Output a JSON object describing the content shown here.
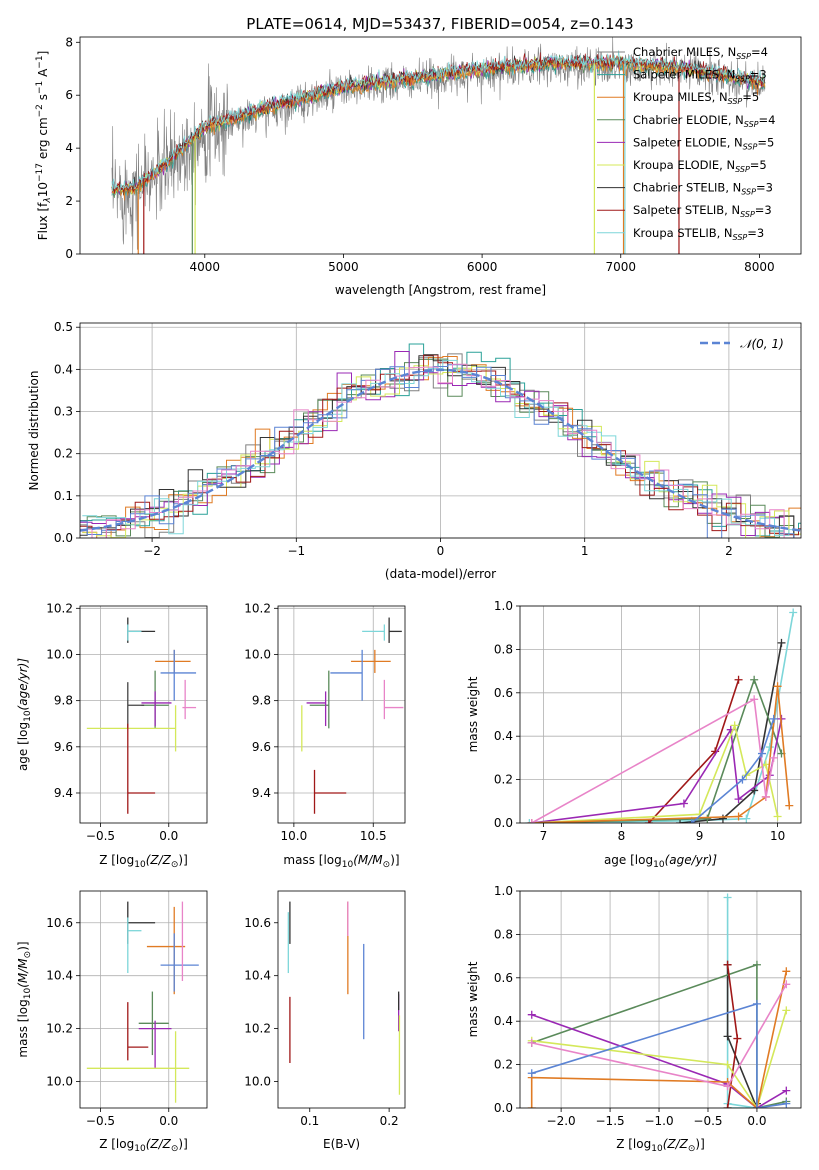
{
  "figure": {
    "title": "PLATE=0614, MJD=53437, FIBERID=0054, z=0.143"
  },
  "series_colors": {
    "Chabrier MILES": "#808080",
    "Salpeter MILES": "#2aa198",
    "Kroupa MILES": "#e07b24",
    "Chabrier ELODIE": "#5a8a5a",
    "Salpeter ELODIE": "#9a28b4",
    "Kroupa ELODIE": "#d4e85a",
    "Chabrier STELIB": "#333333",
    "Salpeter STELIB": "#a01818",
    "Kroupa STELIB": "#7dd6d9",
    "extra_blue": "#5b84d4",
    "extra_pink": "#e884c8"
  },
  "chart_data": [
    {
      "id": "spectrum",
      "type": "line",
      "title": "PLATE=0614, MJD=53437, FIBERID=0054, z=0.143",
      "xlabel": "wavelength [Angstrom, rest frame]",
      "ylabel": "Flux [f",
      "ylabel_sub": "λ",
      "ylabel_rest": "10",
      "ylabel_sup1": "−17",
      "ylabel_mid": " erg cm",
      "ylabel_sup2": "−2",
      "ylabel_mid2": " s",
      "ylabel_sup3": "−1",
      "ylabel_end": " A",
      "ylabel_sup4": "−1",
      "ylabel_close": "]",
      "xlim": [
        3100,
        8300
      ],
      "ylim": [
        0,
        8.2
      ],
      "xticks": [
        4000,
        5000,
        6000,
        7000,
        8000
      ],
      "yticks": [
        0,
        2,
        4,
        6,
        8
      ],
      "continuum": {
        "x": [
          3330,
          3500,
          3700,
          3900,
          4000,
          4200,
          4500,
          4800,
          5000,
          5300,
          5600,
          6000,
          6500,
          7000,
          7500,
          7800,
          8000,
          8050
        ],
        "y": [
          2.4,
          2.5,
          3.3,
          4.3,
          4.8,
          5.1,
          5.6,
          6.0,
          6.3,
          6.5,
          6.7,
          7.0,
          7.2,
          7.2,
          7.0,
          6.7,
          6.5,
          6.4
        ]
      },
      "legend": [
        {
          "label": "Chabrier MILES, N",
          "sub": "SSP",
          "value": "=4",
          "color": "#808080"
        },
        {
          "label": "Salpeter MILES, N",
          "sub": "SSP",
          "value": "=3",
          "color": "#2aa198"
        },
        {
          "label": "Kroupa MILES, N",
          "sub": "SSP",
          "value": "=5",
          "color": "#e07b24"
        },
        {
          "label": "Chabrier ELODIE, N",
          "sub": "SSP",
          "value": "=4",
          "color": "#5a8a5a"
        },
        {
          "label": "Salpeter ELODIE, N",
          "sub": "SSP",
          "value": "=5",
          "color": "#9a28b4"
        },
        {
          "label": "Kroupa ELODIE, N",
          "sub": "SSP",
          "value": "=5",
          "color": "#d4e85a"
        },
        {
          "label": "Chabrier STELIB, N",
          "sub": "SSP",
          "value": "=3",
          "color": "#333333"
        },
        {
          "label": "Salpeter STELIB, N",
          "sub": "SSP",
          "value": "=3",
          "color": "#a01818"
        },
        {
          "label": "Kroupa STELIB, N",
          "sub": "SSP",
          "value": "=3",
          "color": "#7dd6d9"
        }
      ],
      "legend_placement": "right"
    },
    {
      "id": "residuals",
      "type": "bar",
      "xlabel": "(data-model)/error",
      "ylabel": "Normed distribution",
      "xlim": [
        -2.5,
        2.5
      ],
      "ylim": [
        0,
        0.51
      ],
      "xticks": [
        -2,
        -1,
        0,
        1,
        2
      ],
      "yticks": [
        0.0,
        0.1,
        0.2,
        0.3,
        0.4,
        0.5
      ],
      "bin_width": 0.1,
      "gaussian_label": "𝒩(0, 1)",
      "gaussian_color": "#5b84d4",
      "legend_placement": "top-right",
      "grid": true
    },
    {
      "id": "age_vs_Z",
      "type": "scatter",
      "xlabel": "Z [log",
      "xlabel_sub": "10",
      "xlabel_rest": "(Z/Z",
      "xlabel_sub2": "⊙",
      "xlabel_end": ")]",
      "ylabel": "age  [log",
      "ylabel_sub": "10",
      "ylabel_rest": "(age/yr)]",
      "xlim": [
        -0.65,
        0.28
      ],
      "ylim": [
        9.27,
        10.21
      ],
      "xticks": [
        -0.5,
        0.0
      ],
      "yticks": [
        9.4,
        9.6,
        9.8,
        10.0,
        10.2
      ],
      "points": [
        {
          "x": -0.3,
          "y": 10.1,
          "xerr": [
            0.0,
            0.2
          ],
          "yerr": [
            0.05,
            0.06
          ],
          "color": "#333333"
        },
        {
          "x": -0.3,
          "y": 10.1,
          "xerr": [
            0.0,
            0.1
          ],
          "yerr": [
            0.04,
            0.03
          ],
          "color": "#7dd6d9"
        },
        {
          "x": 0.04,
          "y": 9.97,
          "xerr": [
            0.14,
            0.12
          ],
          "yerr": [
            0.05,
            0.05
          ],
          "color": "#e07b24"
        },
        {
          "x": 0.04,
          "y": 9.92,
          "xerr": [
            0.1,
            0.16
          ],
          "yerr": [
            0.12,
            0.1
          ],
          "color": "#5b84d4"
        },
        {
          "x": -0.1,
          "y": 9.78,
          "xerr": [
            0.1,
            0.1
          ],
          "yerr": [
            0.1,
            0.15
          ],
          "color": "#5a8a5a"
        },
        {
          "x": -0.3,
          "y": 9.78,
          "xerr": [
            0.0,
            0.12
          ],
          "yerr": [
            0.1,
            0.1
          ],
          "color": "#444444"
        },
        {
          "x": -0.1,
          "y": 9.79,
          "xerr": [
            0.1,
            0.12
          ],
          "yerr": [
            0.1,
            0.05
          ],
          "color": "#9a28b4"
        },
        {
          "x": 0.12,
          "y": 9.77,
          "xerr": [
            0.02,
            0.08
          ],
          "yerr": [
            0.05,
            0.12
          ],
          "color": "#e884c8"
        },
        {
          "x": 0.05,
          "y": 9.68,
          "xerr": [
            0.65,
            0.0
          ],
          "yerr": [
            0.1,
            0.1
          ],
          "color": "#d4e85a"
        },
        {
          "x": -0.3,
          "y": 9.4,
          "xerr": [
            0.0,
            0.2
          ],
          "yerr": [
            0.09,
            0.3
          ],
          "color": "#a01818"
        }
      ]
    },
    {
      "id": "age_vs_mass",
      "type": "scatter",
      "xlabel": "mass [log",
      "xlabel_sub": "10",
      "xlabel_rest": "(M/M",
      "xlabel_sub2": "⊙",
      "xlabel_end": ")]",
      "xlim": [
        9.9,
        10.7
      ],
      "ylim": [
        9.27,
        10.21
      ],
      "xticks": [
        10.0,
        10.5
      ],
      "yticks": [
        9.4,
        9.6,
        9.8,
        10.0,
        10.2
      ],
      "points": [
        {
          "x": 10.6,
          "y": 10.1,
          "xerr": [
            0.0,
            0.08
          ],
          "yerr": [
            0.05,
            0.06
          ],
          "color": "#333333"
        },
        {
          "x": 10.57,
          "y": 10.1,
          "xerr": [
            0.14,
            0.0
          ],
          "yerr": [
            0.04,
            0.03
          ],
          "color": "#7dd6d9"
        },
        {
          "x": 10.51,
          "y": 9.97,
          "xerr": [
            0.15,
            0.1
          ],
          "yerr": [
            0.05,
            0.05
          ],
          "color": "#e07b24"
        },
        {
          "x": 10.43,
          "y": 9.92,
          "xerr": [
            0.2,
            0.0
          ],
          "yerr": [
            0.12,
            0.1
          ],
          "color": "#5b84d4"
        },
        {
          "x": 10.22,
          "y": 9.78,
          "xerr": [
            0.12,
            0.0
          ],
          "yerr": [
            0.1,
            0.15
          ],
          "color": "#5a8a5a"
        },
        {
          "x": 10.2,
          "y": 9.79,
          "xerr": [
            0.12,
            0.0
          ],
          "yerr": [
            0.1,
            0.05
          ],
          "color": "#9a28b4"
        },
        {
          "x": 10.57,
          "y": 9.77,
          "xerr": [
            0.0,
            0.12
          ],
          "yerr": [
            0.05,
            0.12
          ],
          "color": "#e884c8"
        },
        {
          "x": 10.05,
          "y": 9.68,
          "xerr": [
            0.0,
            0.0
          ],
          "yerr": [
            0.1,
            0.1
          ],
          "color": "#d4e85a"
        },
        {
          "x": 10.13,
          "y": 9.4,
          "xerr": [
            0.0,
            0.2
          ],
          "yerr": [
            0.09,
            0.1
          ],
          "color": "#a01818"
        }
      ]
    },
    {
      "id": "weight_vs_age",
      "type": "line",
      "xlabel": "age  [log",
      "xlabel_sub": "10",
      "xlabel_rest": "(age/yr)]",
      "ylabel": "mass weight",
      "xlim": [
        6.7,
        10.3
      ],
      "ylim": [
        0,
        1.0
      ],
      "xticks": [
        7,
        8,
        9,
        10
      ],
      "yticks": [
        0.0,
        0.2,
        0.4,
        0.6,
        0.8,
        1.0
      ],
      "series": [
        {
          "color": "#7dd6d9",
          "x": [
            6.82,
            8.9,
            9.6,
            9.9,
            10.2
          ],
          "y": [
            0.0,
            0.01,
            0.02,
            0.35,
            0.97
          ]
        },
        {
          "color": "#333333",
          "x": [
            8.75,
            9.3,
            9.7,
            10.05
          ],
          "y": [
            0.0,
            0.02,
            0.15,
            0.83
          ]
        },
        {
          "color": "#5a8a5a",
          "x": [
            6.85,
            9.1,
            9.7,
            10.05
          ],
          "y": [
            0.0,
            0.02,
            0.66,
            0.32
          ]
        },
        {
          "color": "#a01818",
          "x": [
            8.35,
            9.2,
            9.5
          ],
          "y": [
            0.0,
            0.33,
            0.66
          ]
        },
        {
          "color": "#9a28b4",
          "x": [
            6.85,
            8.8,
            9.4,
            9.5,
            9.9,
            10.05
          ],
          "y": [
            0.0,
            0.09,
            0.43,
            0.11,
            0.22,
            0.48
          ]
        },
        {
          "color": "#d4e85a",
          "x": [
            6.85,
            9.0,
            9.45,
            9.6,
            9.85,
            10.0
          ],
          "y": [
            0.0,
            0.04,
            0.45,
            0.22,
            0.27,
            0.03
          ]
        },
        {
          "color": "#e07b24",
          "x": [
            6.85,
            9.5,
            9.85,
            10.0,
            10.15
          ],
          "y": [
            0.0,
            0.03,
            0.12,
            0.63,
            0.08
          ]
        },
        {
          "color": "#e884c8",
          "x": [
            6.85,
            9.7,
            9.85,
            9.95
          ],
          "y": [
            0.0,
            0.57,
            0.12,
            0.3
          ]
        },
        {
          "color": "#5b84d4",
          "x": [
            8.9,
            9.55,
            9.8,
            9.95
          ],
          "y": [
            0.0,
            0.2,
            0.32,
            0.48
          ]
        }
      ]
    },
    {
      "id": "mass_vs_Z",
      "type": "scatter",
      "xlabel": "Z [log",
      "xlabel_sub": "10",
      "xlabel_rest": "(Z/Z",
      "xlabel_sub2": "⊙",
      "xlabel_end": ")]",
      "ylabel": "mass [log",
      "ylabel_sub": "10",
      "ylabel_rest": "(M/M",
      "ylabel_sub2": "⊙",
      "ylabel_end": ")]",
      "xlim": [
        -0.65,
        0.28
      ],
      "ylim": [
        9.9,
        10.72
      ],
      "xticks": [
        -0.5,
        0.0
      ],
      "yticks": [
        10.0,
        10.2,
        10.4,
        10.6
      ],
      "points": [
        {
          "x": -0.3,
          "y": 10.6,
          "xerr": [
            0.0,
            0.2
          ],
          "yerr": [
            0.08,
            0.08
          ],
          "color": "#333333"
        },
        {
          "x": -0.3,
          "y": 10.57,
          "xerr": [
            0.0,
            0.1
          ],
          "yerr": [
            0.16,
            0.05
          ],
          "color": "#7dd6d9"
        },
        {
          "x": 0.04,
          "y": 10.51,
          "xerr": [
            0.2,
            0.08
          ],
          "yerr": [
            0.18,
            0.15
          ],
          "color": "#e07b24"
        },
        {
          "x": 0.04,
          "y": 10.44,
          "xerr": [
            0.1,
            0.18
          ],
          "yerr": [
            0.1,
            0.12
          ],
          "color": "#5b84d4"
        },
        {
          "x": 0.1,
          "y": 10.5,
          "xerr": [
            0.0,
            0.0
          ],
          "yerr": [
            0.12,
            0.18
          ],
          "color": "#e884c8"
        },
        {
          "x": -0.12,
          "y": 10.22,
          "xerr": [
            0.1,
            0.12
          ],
          "yerr": [
            0.12,
            0.12
          ],
          "color": "#5a8a5a"
        },
        {
          "x": -0.1,
          "y": 10.2,
          "xerr": [
            0.12,
            0.12
          ],
          "yerr": [
            0.15,
            0.03
          ],
          "color": "#9a28b4"
        },
        {
          "x": -0.3,
          "y": 10.13,
          "xerr": [
            0.0,
            0.15
          ],
          "yerr": [
            0.05,
            0.17
          ],
          "color": "#a01818"
        },
        {
          "x": 0.05,
          "y": 10.05,
          "xerr": [
            0.65,
            0.1
          ],
          "yerr": [
            0.13,
            0.14
          ],
          "color": "#d4e85a"
        }
      ]
    },
    {
      "id": "mass_vs_ebv",
      "type": "scatter",
      "xlabel": "E(B-V)",
      "xlim": [
        0.06,
        0.22
      ],
      "ylim": [
        9.9,
        10.72
      ],
      "xticks": [
        0.1,
        0.2
      ],
      "yticks": [
        10.0,
        10.2,
        10.4,
        10.6
      ],
      "points": [
        {
          "x": 0.075,
          "y": 10.6,
          "yerr": [
            0.08,
            0.08
          ],
          "color": "#333333"
        },
        {
          "x": 0.073,
          "y": 10.57,
          "yerr": [
            0.16,
            0.07
          ],
          "color": "#7dd6d9"
        },
        {
          "x": 0.075,
          "y": 10.2,
          "yerr": [
            0.13,
            0.12
          ],
          "color": "#a01818"
        },
        {
          "x": 0.148,
          "y": 10.52,
          "yerr": [
            0.19,
            0.16
          ],
          "color": "#e07b24"
        },
        {
          "x": 0.148,
          "y": 10.6,
          "yerr": [
            0.05,
            0.08
          ],
          "color": "#e884c8"
        },
        {
          "x": 0.168,
          "y": 10.4,
          "yerr": [
            0.24,
            0.12
          ],
          "color": "#5b84d4"
        },
        {
          "x": 0.212,
          "y": 10.25,
          "yerr": [
            0.06,
            0.08
          ],
          "color": "#9a28b4"
        },
        {
          "x": 0.213,
          "y": 10.1,
          "yerr": [
            0.15,
            0.15
          ],
          "color": "#d4e85a"
        },
        {
          "x": 0.212,
          "y": 10.3,
          "yerr": [
            0.03,
            0.04
          ],
          "color": "#333333"
        }
      ]
    },
    {
      "id": "weight_vs_Z",
      "type": "line",
      "xlabel": "Z [log",
      "xlabel_sub": "10",
      "xlabel_rest": "(Z/Z",
      "xlabel_sub2": "⊙",
      "xlabel_end": ")]",
      "ylabel": "mass weight",
      "xlim": [
        -2.42,
        0.45
      ],
      "ylim": [
        0,
        1.0
      ],
      "xticks": [
        -2.0,
        -1.5,
        -1.0,
        -0.5,
        0.0
      ],
      "yticks": [
        0.0,
        0.2,
        0.4,
        0.6,
        0.8,
        1.0
      ],
      "series": [
        {
          "color": "#7dd6d9",
          "x": [
            -0.3,
            -0.3,
            0.0,
            -0.3
          ],
          "y": [
            0.97,
            0.0,
            0.0,
            0.02
          ]
        },
        {
          "color": "#333333",
          "x": [
            -0.3,
            -0.3,
            0.0,
            0.0
          ],
          "y": [
            0.66,
            0.33,
            0.0,
            0.02
          ]
        },
        {
          "color": "#5a8a5a",
          "x": [
            -2.3,
            0.0,
            0.0,
            0.3
          ],
          "y": [
            0.3,
            0.66,
            0.0,
            0.03
          ]
        },
        {
          "color": "#a01818",
          "x": [
            -0.3,
            -0.2,
            -0.3
          ],
          "y": [
            0.66,
            0.32,
            0.0
          ]
        },
        {
          "color": "#9a28b4",
          "x": [
            -2.3,
            -0.3,
            0.0,
            0.3
          ],
          "y": [
            0.43,
            0.11,
            0.0,
            0.08
          ]
        },
        {
          "color": "#d4e85a",
          "x": [
            -2.3,
            -0.3,
            0.0,
            0.3
          ],
          "y": [
            0.31,
            0.2,
            0.0,
            0.45
          ]
        },
        {
          "color": "#e07b24",
          "x": [
            -2.3,
            -2.3,
            -0.3,
            0.0,
            0.3
          ],
          "y": [
            0.0,
            0.14,
            0.12,
            0.0,
            0.63
          ]
        },
        {
          "color": "#e884c8",
          "x": [
            -2.3,
            -0.3,
            0.3
          ],
          "y": [
            0.3,
            0.1,
            0.57
          ]
        },
        {
          "color": "#5b84d4",
          "x": [
            -2.3,
            0.0,
            0.0,
            0.3
          ],
          "y": [
            0.16,
            0.48,
            0.0,
            0.02
          ]
        }
      ]
    }
  ]
}
